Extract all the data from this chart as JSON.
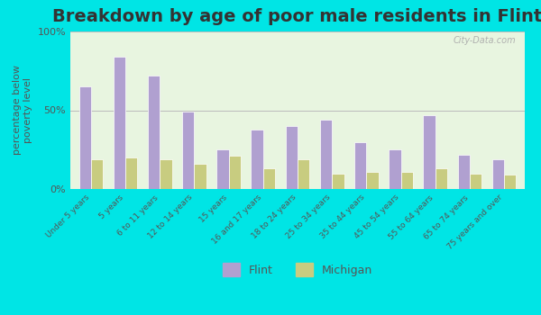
{
  "title": "Breakdown by age of poor male residents in Flint",
  "categories": [
    "Under 5 years",
    "5 years",
    "6 to 11 years",
    "12 to 14 years",
    "15 years",
    "16 and 17 years",
    "18 to 24 years",
    "25 to 34 years",
    "35 to 44 years",
    "45 to 54 years",
    "55 to 64 years",
    "65 to 74 years",
    "75 years and over"
  ],
  "flint_values": [
    65,
    84,
    72,
    49,
    25,
    38,
    40,
    44,
    30,
    25,
    47,
    22,
    19
  ],
  "michigan_values": [
    19,
    20,
    19,
    16,
    21,
    13,
    19,
    10,
    11,
    11,
    13,
    10,
    9
  ],
  "flint_color": "#b0a0d0",
  "michigan_color": "#c8cc80",
  "background_outer": "#00e5e5",
  "background_plot": "#e8f5e0",
  "ylabel": "percentage below\npoverty level",
  "ylim": [
    0,
    100
  ],
  "yticks": [
    0,
    50,
    100
  ],
  "ytick_labels": [
    "0%",
    "50%",
    "100%"
  ],
  "bar_width": 0.35,
  "title_fontsize": 14,
  "watermark": "City-Data.com",
  "legend_flint": "Flint",
  "legend_michigan": "Michigan"
}
